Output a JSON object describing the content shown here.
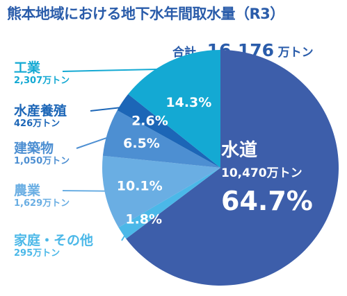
{
  "title": "熊本地域における地下水年間取水量（R3）",
  "total": {
    "label": "合計",
    "value": "16,176",
    "unit": "万トン"
  },
  "chart_data": {
    "type": "pie",
    "title": "熊本地域における地下水年間取水量（R3）",
    "unit": "万トン",
    "total": 16176,
    "slices": [
      {
        "name": "水道",
        "value": 10470,
        "value_label": "10,470万トン",
        "percent": "64.7%",
        "color": "#3d5eaa"
      },
      {
        "name": "家庭・その他",
        "value": 295,
        "value_label": "295万トン",
        "percent": "1.8%",
        "color": "#4bb8e8"
      },
      {
        "name": "農業",
        "value": 1629,
        "value_label": "1,629万トン",
        "percent": "10.1%",
        "color": "#6aaee3"
      },
      {
        "name": "建築物",
        "value": 1050,
        "value_label": "1,050万トン",
        "percent": "6.5%",
        "color": "#4d8fd2"
      },
      {
        "name": "水産養殖",
        "value": 426,
        "value_label": "426万トン",
        "percent": "2.6%",
        "color": "#1c66b7"
      },
      {
        "name": "工業",
        "value": 2307,
        "value_label": "2,307万トン",
        "percent": "14.3%",
        "color": "#14a9d3"
      }
    ]
  }
}
